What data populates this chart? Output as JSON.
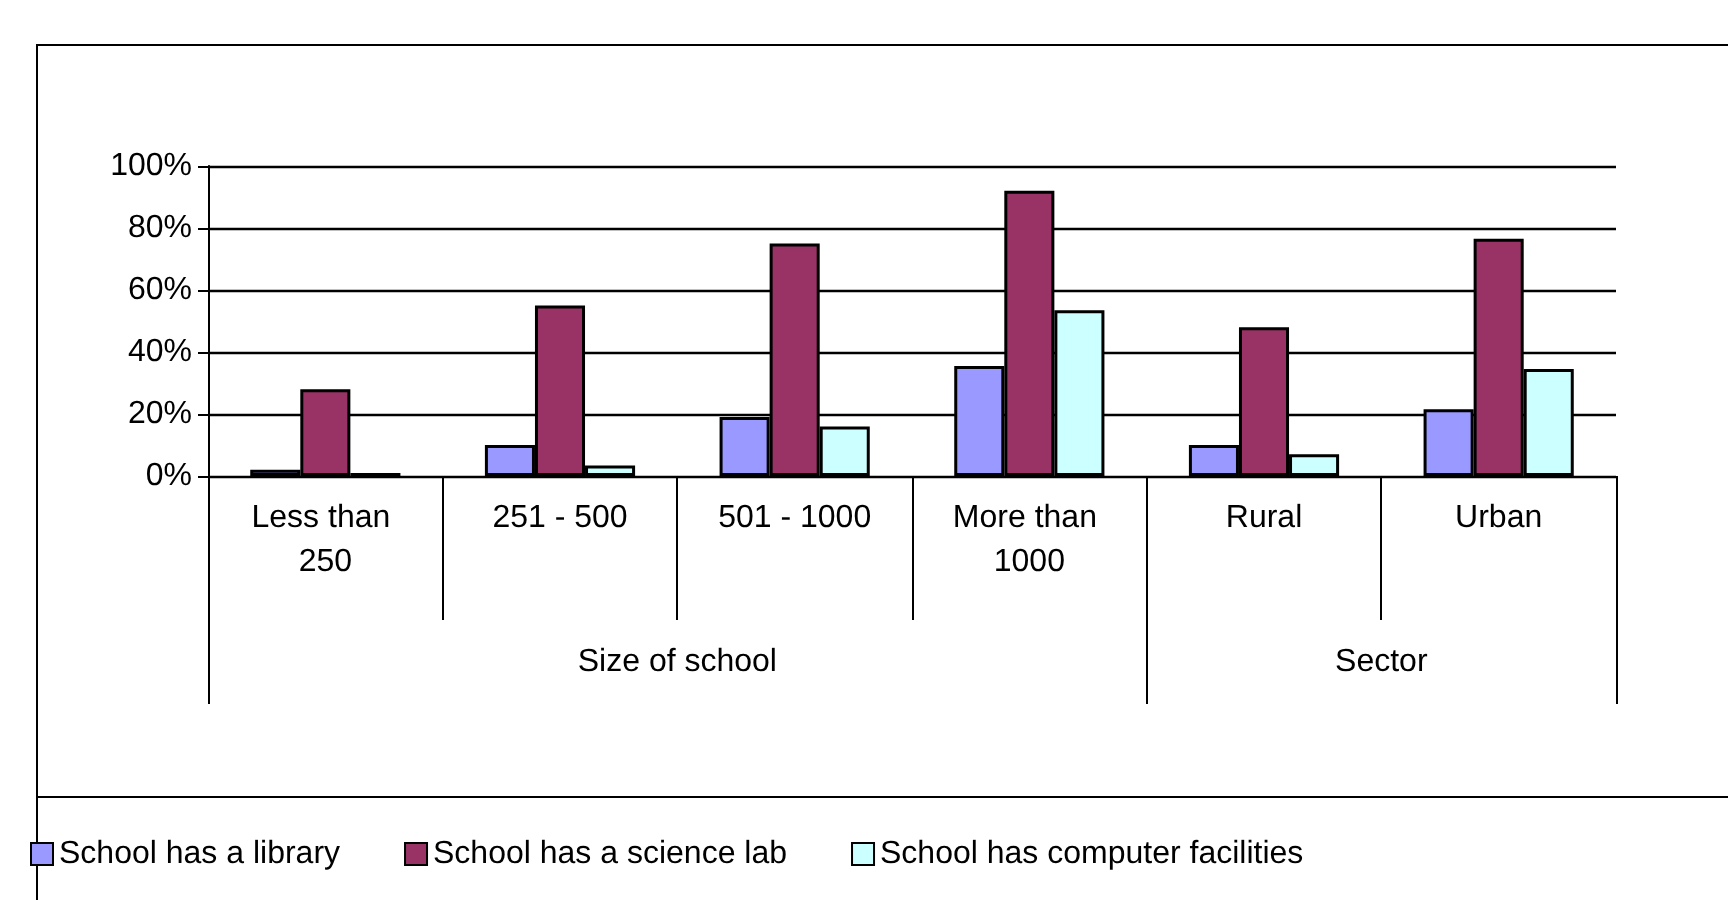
{
  "chart_data": {
    "type": "bar",
    "categories": [
      "Less than 250",
      "251 - 500",
      "501 - 1000",
      "More than 1000",
      "Rural",
      "Urban"
    ],
    "series": [
      {
        "name": "School has a library",
        "color": "#9999ff",
        "values": [
          2,
          10,
          19,
          35.5,
          10,
          21.5
        ]
      },
      {
        "name": "School has a science lab",
        "color": "#993366",
        "values": [
          28,
          55,
          75,
          92,
          48,
          76.5
        ]
      },
      {
        "name": "School has computer facilities",
        "color": "#ccffff",
        "values": [
          1,
          3.4,
          16,
          53.5,
          7,
          34.5
        ]
      }
    ],
    "ylim": [
      0,
      100
    ],
    "yticks": [
      {
        "value": 0,
        "label": "0%"
      },
      {
        "value": 20,
        "label": "20%"
      },
      {
        "value": 40,
        "label": "40%"
      },
      {
        "value": 60,
        "label": "60%"
      },
      {
        "value": 80,
        "label": "80%"
      },
      {
        "value": 100,
        "label": "100%"
      }
    ],
    "grid": "y",
    "legend": "bottom",
    "annotations": [
      "Size of school",
      "Sector"
    ]
  }
}
